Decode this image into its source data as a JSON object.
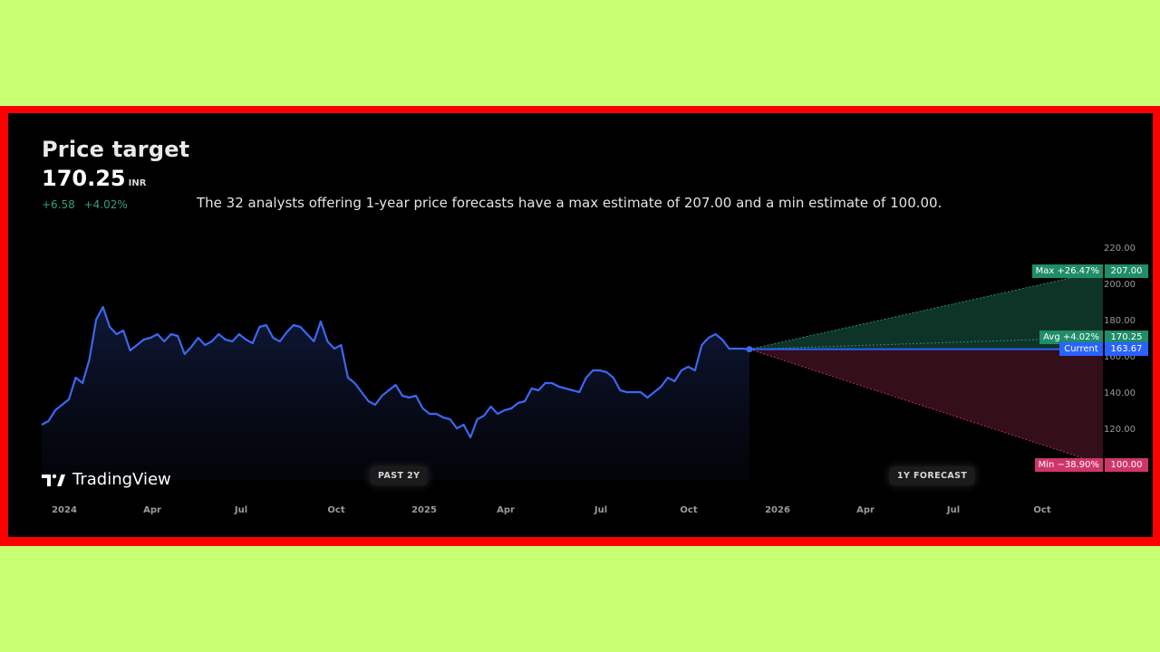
{
  "header": {
    "title": "Price target",
    "price": "170.25",
    "currency": "INR",
    "change_abs": "+6.58",
    "change_pct": "+4.02%",
    "description": "The 32 analysts offering 1-year price forecasts have a max estimate of 207.00 and a min estimate of 100.00."
  },
  "brand": {
    "name": "TradingView"
  },
  "pills": {
    "past": "PAST 2Y",
    "forecast": "1Y FORECAST"
  },
  "labels": {
    "max_name": "Max +26.47%",
    "max_value": "207.00",
    "avg_name": "Avg +4.02%",
    "avg_value": "170.25",
    "current_name": "Current",
    "current_value": "163.67",
    "min_name": "Min −38.90%",
    "min_value": "100.00"
  },
  "colors": {
    "line": "#3a68f0",
    "max": "#1f8c6a",
    "avg": "#1f8c6a",
    "current": "#2962ff",
    "min": "#d0356a",
    "up_fill": "#0f3a2c",
    "down_fill": "#3a0f1c"
  },
  "chart_data": {
    "type": "line",
    "ylim": [
      100,
      220
    ],
    "yticks": [
      "220.00",
      "200.00",
      "180.00",
      "160.00",
      "140.00",
      "120.00"
    ],
    "xticks": [
      "2024",
      "Apr",
      "Jul",
      "Oct",
      "2025",
      "Apr",
      "Jul",
      "Oct",
      "2026",
      "Apr",
      "Jul",
      "Oct"
    ],
    "series": [
      {
        "values": [
          122,
          124,
          130,
          133,
          136,
          148,
          145,
          158,
          180,
          187,
          176,
          172,
          174,
          163,
          166,
          169,
          170,
          172,
          168,
          172,
          171,
          161,
          165,
          170,
          166,
          168,
          172,
          169,
          168,
          172,
          169,
          167,
          176,
          177,
          170,
          168,
          173,
          177,
          176,
          172,
          168,
          179,
          168,
          164,
          166,
          148,
          145,
          140,
          135,
          133,
          138,
          141,
          144,
          138,
          137,
          138,
          131,
          128,
          128,
          126,
          125,
          120,
          122,
          115,
          125,
          127,
          132,
          128,
          130,
          131,
          134,
          135,
          142,
          141,
          145,
          145,
          143,
          142,
          141,
          140,
          148,
          152,
          152,
          151,
          148,
          141,
          140,
          140,
          140,
          137,
          140,
          143,
          148,
          146,
          152,
          154,
          152,
          166,
          170,
          172,
          169,
          164,
          164,
          164,
          163.67
        ]
      }
    ],
    "forecast": {
      "current": 163.67,
      "max": 207.0,
      "avg": 170.25,
      "min": 100.0
    }
  }
}
